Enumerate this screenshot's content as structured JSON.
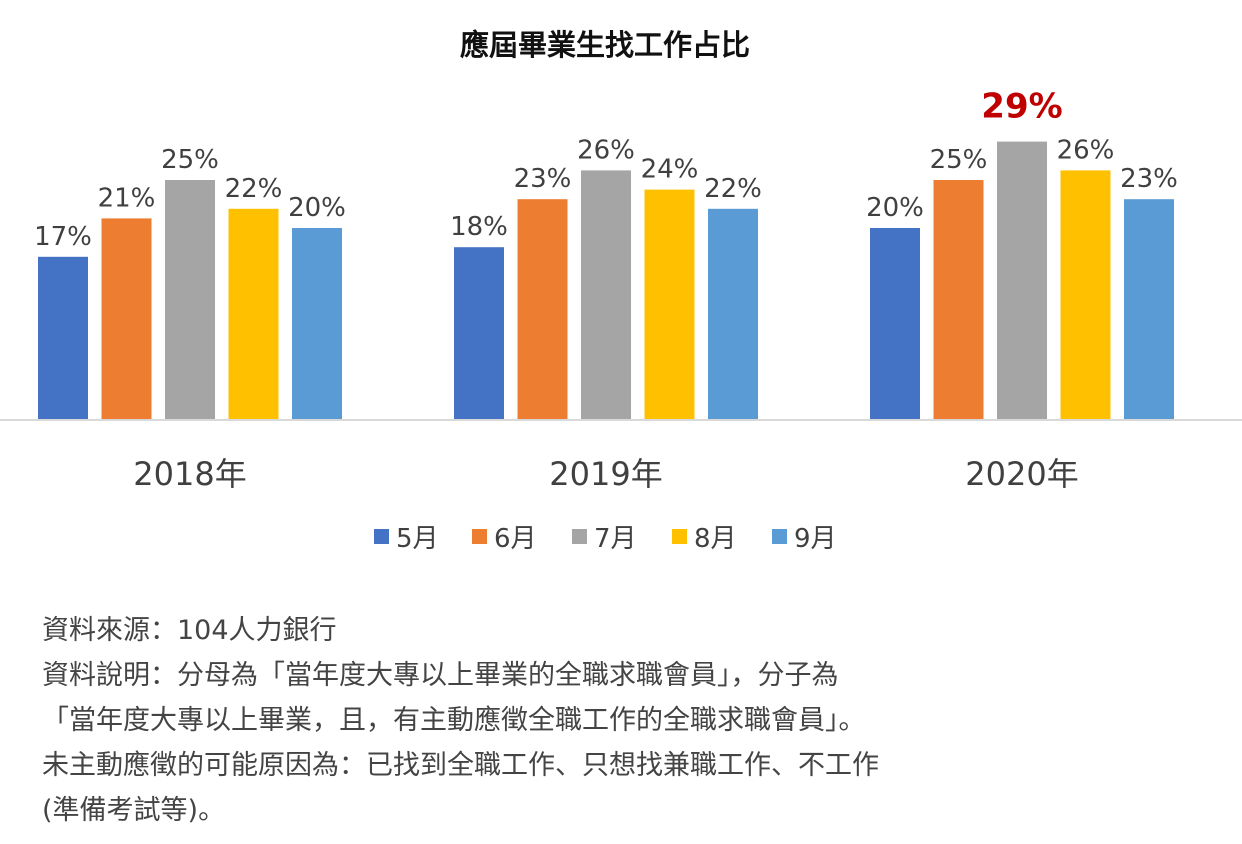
{
  "chart_data": {
    "type": "bar",
    "title": "應屆畢業生找工作占比",
    "categories": [
      "2018年",
      "2019年",
      "2020年"
    ],
    "series": [
      {
        "name": "5月",
        "color": "#4472C4",
        "values": [
          17,
          18,
          20
        ]
      },
      {
        "name": "6月",
        "color": "#ED7D31",
        "values": [
          21,
          23,
          25
        ]
      },
      {
        "name": "7月",
        "color": "#A5A5A5",
        "values": [
          25,
          26,
          29
        ]
      },
      {
        "name": "8月",
        "color": "#FFC000",
        "values": [
          22,
          24,
          26
        ]
      },
      {
        "name": "9月",
        "color": "#5B9BD5",
        "values": [
          20,
          22,
          23
        ]
      }
    ],
    "value_suffix": "%",
    "highlight": {
      "series": "7月",
      "category": "2020年",
      "color": "#C00000"
    },
    "xlabel": "",
    "ylabel": "",
    "ylim": [
      0,
      30
    ],
    "grid": false,
    "legend": "bottom"
  },
  "notes": [
    "資料來源：104人力銀行",
    "資料說明：分母為「當年度大專以上畢業的全職求職會員」，分子為",
    "「當年度大專以上畢業，且，有主動應徵全職工作的全職求職會員」。",
    "未主動應徵的可能原因為：已找到全職工作、只想找兼職工作、不工作",
    "(準備考試等)。"
  ]
}
